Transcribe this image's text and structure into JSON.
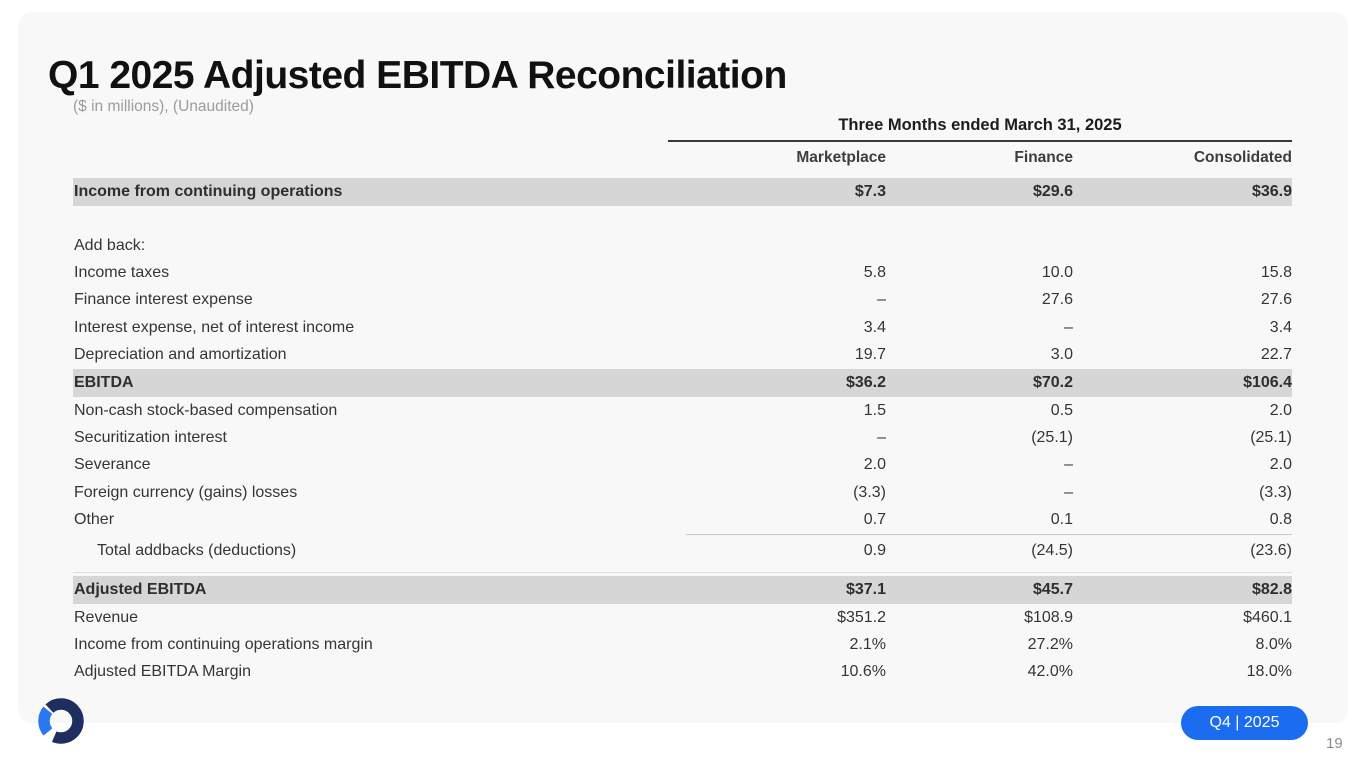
{
  "slide": {
    "title": "Q1 2025 Adjusted EBITDA Reconciliation",
    "subtitle": "($ in millions), (Unaudited)",
    "page_number": "19",
    "quarter_badge": "Q4 | 2025"
  },
  "table": {
    "period_header": "Three Months ended March 31, 2025",
    "columns": [
      "Marketplace",
      "Finance",
      "Consolidated"
    ],
    "rows": [
      {
        "label": "Income from continuing operations",
        "values": [
          "$7.3",
          "$29.6",
          "$36.9"
        ],
        "style": "highlight"
      },
      {
        "style": "spacer"
      },
      {
        "label": "Add back:",
        "values": [
          "",
          "",
          ""
        ],
        "style": "normal"
      },
      {
        "label": "Income taxes",
        "values": [
          "5.8",
          "10.0",
          "15.8"
        ],
        "style": "normal"
      },
      {
        "label": "Finance interest expense",
        "values": [
          "–",
          "27.6",
          "27.6"
        ],
        "style": "normal"
      },
      {
        "label": "Interest expense, net of interest income",
        "values": [
          "3.4",
          "–",
          "3.4"
        ],
        "style": "normal"
      },
      {
        "label": "Depreciation and amortization",
        "values": [
          "19.7",
          "3.0",
          "22.7"
        ],
        "style": "normal"
      },
      {
        "label": "EBITDA",
        "values": [
          "$36.2",
          "$70.2",
          "$106.4"
        ],
        "style": "highlight"
      },
      {
        "label": "Non-cash stock-based compensation",
        "values": [
          "1.5",
          "0.5",
          "2.0"
        ],
        "style": "normal"
      },
      {
        "label": "Securitization interest",
        "values": [
          "–",
          "(25.1)",
          "(25.1)"
        ],
        "style": "normal"
      },
      {
        "label": "Severance",
        "values": [
          "2.0",
          "–",
          "2.0"
        ],
        "style": "normal"
      },
      {
        "label": "Foreign currency (gains) losses",
        "values": [
          "(3.3)",
          "–",
          "(3.3)"
        ],
        "style": "normal"
      },
      {
        "label": "Other",
        "values": [
          "0.7",
          "0.1",
          "0.8"
        ],
        "style": "normal"
      },
      {
        "label": "Total addbacks (deductions)",
        "values": [
          "0.9",
          "(24.5)",
          "(23.6)"
        ],
        "style": "total"
      },
      {
        "style": "rule"
      },
      {
        "label": "Adjusted EBITDA",
        "values": [
          "$37.1",
          "$45.7",
          "$82.8"
        ],
        "style": "highlight"
      },
      {
        "label": "Revenue",
        "values": [
          "$351.2",
          "$108.9",
          "$460.1"
        ],
        "style": "normal"
      },
      {
        "label": "Income from continuing operations margin",
        "values": [
          "2.1%",
          "27.2%",
          "8.0%"
        ],
        "style": "normal"
      },
      {
        "label": "Adjusted EBITDA Margin",
        "values": [
          "10.6%",
          "42.0%",
          "18.0%"
        ],
        "style": "normal"
      }
    ]
  },
  "colors": {
    "band": "#d6d6d6",
    "pill_blue": "#1c6cf2",
    "logo_navy": "#1d2e5f",
    "logo_blue": "#2b77f1",
    "card_background": "#f8f8f9"
  }
}
